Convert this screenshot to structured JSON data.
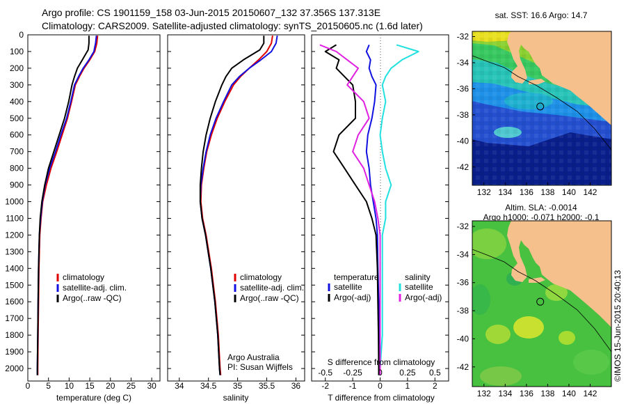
{
  "header": {
    "line1": "Argo profile: CS 1901159_158 03-Jun-2015 20150607_132 37.356S 137.313E",
    "line2": "Climatology: CARS2009. Satellite-adjusted climatology: synTS_20150605.nc (1.6d later)"
  },
  "colors": {
    "climatology": "#e00000",
    "satellite": "#1010e0",
    "argo": "#000000",
    "salinity_sat": "#20e0e0",
    "salinity_argo": "#e020e0"
  },
  "chart_data": [
    {
      "id": "temperature",
      "type": "line",
      "xlabel": "temperature (deg C)",
      "ylabel": "",
      "xlim": [
        0,
        32
      ],
      "ylim": [
        2075,
        0
      ],
      "xticks": [
        0,
        5,
        10,
        15,
        20,
        25,
        30
      ],
      "yticks": [
        0,
        100,
        200,
        300,
        400,
        500,
        600,
        700,
        800,
        900,
        1000,
        1100,
        1200,
        1300,
        1400,
        1500,
        1600,
        1700,
        1800,
        1900,
        2000
      ],
      "legend": [
        "climatology",
        "satellite-adj. clim.",
        "Argo(..raw -QC)"
      ],
      "series": [
        {
          "name": "climatology",
          "color": "#e00000",
          "x": [
            16.9,
            16.7,
            16.2,
            15.0,
            13.6,
            12.5,
            11.5,
            10.6,
            9.6,
            8.3,
            7.0,
            5.6,
            4.5,
            3.6,
            3.2,
            2.9,
            2.7,
            2.6,
            2.5,
            2.4,
            2.4
          ],
          "y": [
            5,
            50,
            100,
            150,
            200,
            250,
            300,
            400,
            500,
            600,
            700,
            800,
            900,
            1000,
            1100,
            1200,
            1400,
            1600,
            1800,
            2000,
            2040
          ]
        },
        {
          "name": "satellite-adj. clim.",
          "color": "#1010e0",
          "x": [
            16.6,
            16.4,
            16.0,
            14.8,
            13.4,
            12.3,
            11.3,
            10.4,
            9.4,
            8.0,
            6.7,
            5.3,
            4.2,
            3.5,
            3.1,
            2.8,
            2.6,
            2.5,
            2.4,
            2.3,
            2.3
          ],
          "y": [
            5,
            50,
            100,
            150,
            200,
            250,
            300,
            400,
            500,
            600,
            700,
            800,
            900,
            1000,
            1100,
            1200,
            1400,
            1600,
            1800,
            2000,
            2040
          ]
        },
        {
          "name": "Argo(..raw -QC)",
          "color": "#000000",
          "x": [
            14.8,
            14.8,
            14.6,
            13.2,
            12.0,
            11.3,
            10.7,
            9.9,
            8.9,
            7.6,
            6.3,
            5.0,
            4.1,
            3.4,
            3.0,
            2.8,
            2.6,
            2.5,
            2.4,
            2.3,
            2.3
          ],
          "y": [
            5,
            50,
            90,
            150,
            200,
            250,
            300,
            400,
            500,
            600,
            700,
            800,
            900,
            1000,
            1100,
            1200,
            1400,
            1600,
            1800,
            2000,
            2040
          ]
        }
      ]
    },
    {
      "id": "salinity",
      "type": "line",
      "xlabel": "salinity",
      "ylabel": "",
      "xlim": [
        33.8,
        36.15
      ],
      "ylim": [
        2075,
        0
      ],
      "xticks": [
        34,
        34.5,
        35,
        35.5,
        36
      ],
      "legend": [
        "climatology",
        "satellite-adj. clim.",
        "Argo(..raw -QC)"
      ],
      "annotations": [
        "Argo Australia",
        "PI: Susan Wijffels"
      ],
      "series": [
        {
          "name": "climatology",
          "color": "#e00000",
          "x": [
            35.6,
            35.58,
            35.5,
            35.36,
            35.2,
            35.05,
            34.93,
            34.78,
            34.65,
            34.55,
            34.47,
            34.42,
            34.38,
            34.37,
            34.4,
            34.46,
            34.55,
            34.62,
            34.67,
            34.7,
            34.71
          ],
          "y": [
            5,
            50,
            100,
            150,
            200,
            250,
            300,
            400,
            500,
            600,
            700,
            800,
            900,
            1000,
            1100,
            1200,
            1400,
            1600,
            1800,
            2000,
            2040
          ]
        },
        {
          "name": "satellite-adj. clim.",
          "color": "#1010e0",
          "x": [
            35.68,
            35.66,
            35.58,
            35.4,
            35.2,
            35.03,
            34.9,
            34.76,
            34.63,
            34.53,
            34.46,
            34.41,
            34.37,
            34.36,
            34.39,
            34.45,
            34.54,
            34.61,
            34.66,
            34.69,
            34.7
          ],
          "y": [
            5,
            50,
            100,
            150,
            200,
            250,
            300,
            400,
            500,
            600,
            700,
            800,
            900,
            1000,
            1100,
            1200,
            1400,
            1600,
            1800,
            2000,
            2040
          ]
        },
        {
          "name": "Argo(..raw -QC)",
          "color": "#000000",
          "x": [
            35.45,
            35.45,
            35.38,
            35.1,
            34.9,
            34.8,
            34.73,
            34.62,
            34.53,
            34.46,
            34.41,
            34.38,
            34.36,
            34.36,
            34.39,
            34.45,
            34.54,
            34.61,
            34.66,
            34.69,
            34.7
          ],
          "y": [
            5,
            50,
            90,
            150,
            200,
            250,
            300,
            400,
            500,
            600,
            700,
            800,
            900,
            1000,
            1100,
            1200,
            1400,
            1600,
            1800,
            2000,
            2040
          ]
        }
      ]
    },
    {
      "id": "difference",
      "type": "line",
      "xlabel": "T difference from climatology",
      "xlabel_top": "S difference from climatology",
      "ylabel": "",
      "xlim": [
        -2.5,
        2.5
      ],
      "ylim": [
        2075,
        0
      ],
      "xticks": [
        -2,
        -1,
        0,
        1,
        2
      ],
      "xticks_top": [
        "-0.5",
        "-0.25",
        "0",
        "0.25",
        "0.5"
      ],
      "legend_left": {
        "title": "temperature",
        "items": [
          "satellite",
          "Argo(-adj)"
        ]
      },
      "legend_right": {
        "title": "salinity",
        "items": [
          "satellite",
          "Argo(-adj)"
        ]
      },
      "series": [
        {
          "name": "temperature satellite",
          "color": "#1010e0",
          "x": [
            -0.4,
            -0.5,
            -0.35,
            -0.4,
            -0.3,
            -0.15,
            -0.2,
            -0.3,
            -0.45,
            -0.5,
            -0.4,
            -0.35,
            -0.25,
            -0.15,
            -0.1,
            -0.08,
            -0.05,
            -0.05,
            -0.05,
            -0.05
          ],
          "y": [
            60,
            100,
            150,
            200,
            250,
            300,
            400,
            500,
            600,
            700,
            800,
            900,
            1000,
            1100,
            1200,
            1400,
            1600,
            1800,
            2000,
            2040
          ]
        },
        {
          "name": "temperature Argo(-adj)",
          "color": "#000000",
          "x": [
            -1.6,
            -2.0,
            -1.5,
            -1.6,
            -1.3,
            -1.0,
            -0.9,
            -0.9,
            -1.5,
            -1.7,
            -1.3,
            -0.9,
            -0.5,
            -0.3,
            -0.15,
            -0.1,
            -0.08,
            -0.06,
            -0.05,
            -0.05
          ],
          "y": [
            60,
            100,
            150,
            200,
            250,
            300,
            400,
            500,
            600,
            700,
            800,
            900,
            1000,
            1100,
            1200,
            1400,
            1600,
            1800,
            2000,
            2040
          ]
        },
        {
          "name": "salinity satellite",
          "color": "#20e0e0",
          "x": [
            0.15,
            0.35,
            0.2,
            0.1,
            0.05,
            0.02,
            0.05,
            0.02,
            0.0,
            0.02,
            0.05,
            0.1,
            0.05,
            0.05,
            0.02,
            0.02,
            0.02,
            0.02,
            0.0,
            0.0
          ],
          "y": [
            60,
            100,
            150,
            200,
            250,
            300,
            400,
            500,
            600,
            700,
            800,
            900,
            1000,
            1100,
            1200,
            1400,
            1600,
            1800,
            2000,
            2040
          ]
        },
        {
          "name": "salinity Argo(-adj)",
          "color": "#e020e0",
          "x": [
            -0.55,
            -0.4,
            -0.3,
            -0.2,
            -0.25,
            -0.3,
            -0.15,
            -0.1,
            -0.2,
            -0.25,
            -0.15,
            -0.1,
            -0.05,
            -0.02,
            0.0,
            0.0,
            0.0,
            0.0,
            0.0,
            0.0
          ],
          "y": [
            60,
            100,
            150,
            200,
            250,
            300,
            400,
            500,
            600,
            700,
            800,
            900,
            1000,
            1100,
            1200,
            1400,
            1600,
            1800,
            2000,
            2040
          ]
        }
      ]
    },
    {
      "id": "sst_map",
      "type": "heatmap",
      "title": "sat. SST: 16.6  Argo: 14.7",
      "xlim": [
        130.9,
        144.0
      ],
      "ylim": [
        -43.4,
        -31.6
      ],
      "xticks": [
        132,
        134,
        136,
        138,
        140,
        142
      ],
      "yticks": [
        -32,
        -34,
        -36,
        -38,
        -40,
        -42
      ],
      "marker": {
        "lon": 137.3,
        "lat": -37.36
      }
    },
    {
      "id": "sla_map",
      "type": "heatmap",
      "title_line1": "Altim. SLA: -0.0014",
      "title_line2": "Argo h1000: -0.071 h2000: -0.1",
      "xlim": [
        130.9,
        144.0
      ],
      "ylim": [
        -43.4,
        -31.6
      ],
      "xticks": [
        132,
        134,
        136,
        138,
        140,
        142
      ],
      "yticks": [
        -32,
        -34,
        -36,
        -38,
        -40,
        -42
      ],
      "marker": {
        "lon": 137.3,
        "lat": -37.36
      }
    }
  ],
  "credit": "©IMOS 15-Jun-2015 20:40:13"
}
